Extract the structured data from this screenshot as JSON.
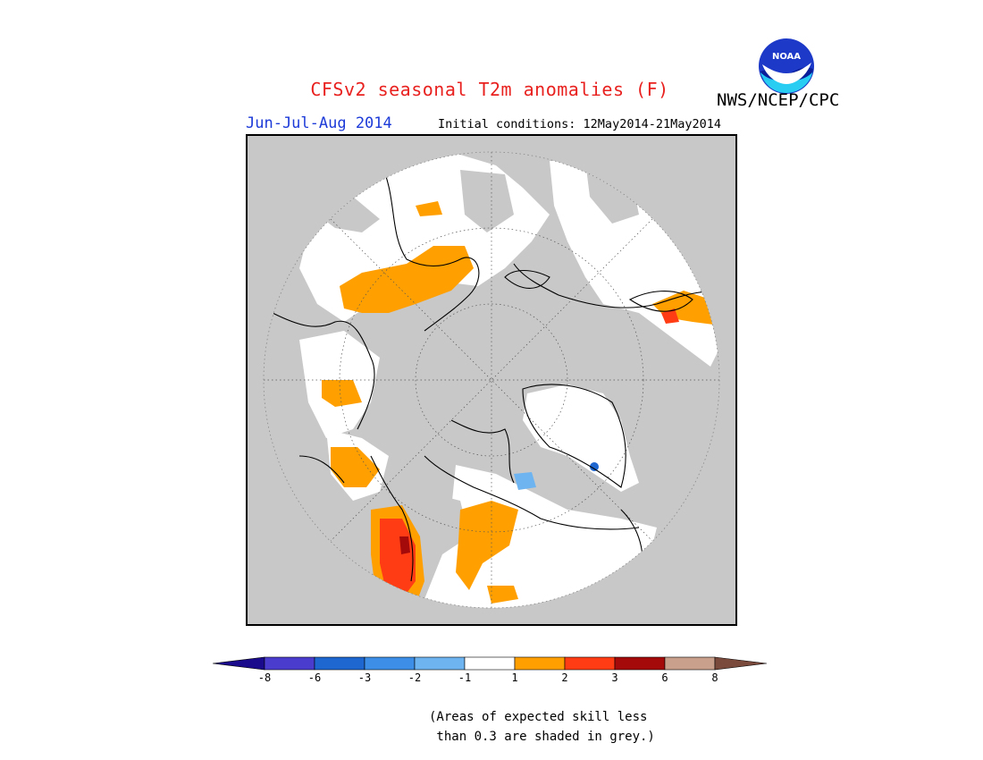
{
  "title": "CFSv2 seasonal T2m anomalies (F)",
  "agency": "NWS/NCEP/CPC",
  "logo_text": "NOAA",
  "season": "Jun-Jul-Aug 2014",
  "initial_conditions": "Initial conditions: 12May2014-21May2014",
  "note_line1": "(Areas of expected skill less",
  "note_line2": " than 0.3 are shaded in grey.)",
  "colorbar": {
    "tick_labels": [
      "-8",
      "-6",
      "-3",
      "-2",
      "-1",
      "1",
      "2",
      "3",
      "6",
      "8"
    ],
    "colors": [
      "#1a0a8c",
      "#4a3ccc",
      "#1e66d0",
      "#3c8ee6",
      "#6eb4f0",
      "#ffffff",
      "#ffa000",
      "#ff3c14",
      "#a40a0a",
      "#c8a08c",
      "#7a4a3c"
    ]
  },
  "map": {
    "legend_colors": {
      "skill_grey": "#c8c8c8",
      "plus_1_2": "#ffa000",
      "plus_2_3": "#ff3c14",
      "plus_3_6": "#a40a0a",
      "minus_1_2": "#6eb4f0",
      "minus_3_6": "#1e66d0"
    }
  }
}
